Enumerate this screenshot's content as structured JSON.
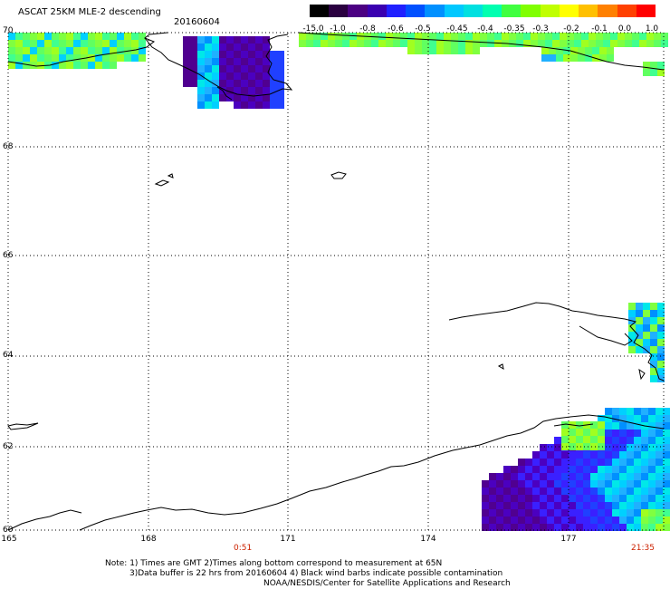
{
  "header": {
    "title": "ASCAT 25KM MLE-2 descending",
    "date": "20160604"
  },
  "colorbar": {
    "labels": [
      "-15.0",
      "-1.0",
      "-0.8",
      "-0.6",
      "-0.5",
      "-0.45",
      "-0.4",
      "-0.35",
      "-0.3",
      "-0.2",
      "-0.1",
      "0.0",
      "1.0"
    ],
    "colors": [
      "#000000",
      "#2a0040",
      "#4b0082",
      "#3a00b0",
      "#2020ff",
      "#0050ff",
      "#0090ff",
      "#00c8ff",
      "#00e0e0",
      "#00ffb0",
      "#40ff40",
      "#80ff00",
      "#c0ff00",
      "#ffff00",
      "#ffc000",
      "#ff8000",
      "#ff4000",
      "#ff0000"
    ]
  },
  "axes": {
    "lat_labels": [
      "70",
      "68",
      "66",
      "64",
      "62",
      "60"
    ],
    "lon_labels": [
      "165",
      "168",
      "171",
      "174",
      "177"
    ]
  },
  "times": {
    "left": "0:51",
    "right": "21:35"
  },
  "notes": {
    "line1": "Note: 1) Times are GMT 2)Times along bottom correspond to measurement at 65N",
    "line2": "3)Data buffer is 22 hrs from 20160604 4) Black wind barbs indicate possible contamination",
    "line3": "NOAA/NESDIS/Center for Satellite Applications and Research"
  }
}
